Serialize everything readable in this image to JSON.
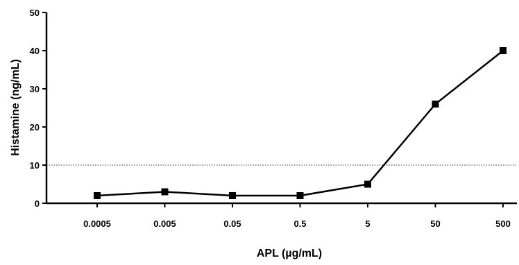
{
  "chart_data": {
    "type": "line",
    "title": "",
    "xlabel": "APL (µg/mL)",
    "ylabel": "Histamine (ng/mL)",
    "categories": [
      "0.0005",
      "0.005",
      "0.05",
      "0.5",
      "5",
      "50",
      "500"
    ],
    "series": [
      {
        "values": [
          2,
          3,
          2,
          2,
          5,
          26,
          40
        ]
      }
    ],
    "ylim": [
      0,
      50
    ],
    "yticks": [
      0,
      10,
      20,
      30,
      40,
      50
    ],
    "reference_line": {
      "y": 10,
      "style": "dotted"
    },
    "grid": false,
    "marker": "square",
    "line_color": "#000000"
  }
}
